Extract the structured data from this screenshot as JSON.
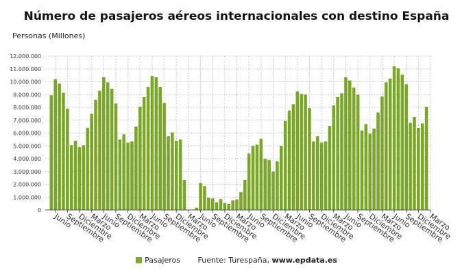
{
  "chart_data": {
    "type": "bar",
    "title": "Número de pasajeros aéreos internacionales con destino España",
    "ylabel": "Personas (Millones)",
    "xlabel": "",
    "ylim": [
      0,
      12000000
    ],
    "yticks": [
      0,
      1000000,
      2000000,
      3000000,
      4000000,
      5000000,
      6000000,
      7000000,
      8000000,
      9000000,
      10000000,
      11000000,
      12000000
    ],
    "ytick_labels": [
      "0",
      "1.000.000",
      "2.000.000",
      "3.000.000",
      "4.000.000",
      "5.000.000",
      "6.000.000",
      "7.000.000",
      "8.000.000",
      "9.000.000",
      "10.000.000",
      "11.000.000",
      "12.000.000"
    ],
    "color": "#7aa62a",
    "series": [
      {
        "name": "Pasajeros",
        "values": [
          8950000,
          10200000,
          9850000,
          9150000,
          7900000,
          5050000,
          5400000,
          4900000,
          5050000,
          6400000,
          7500000,
          8600000,
          9300000,
          10350000,
          9950000,
          9450000,
          8300000,
          5500000,
          5900000,
          5250000,
          5350000,
          6500000,
          8050000,
          8800000,
          9600000,
          10450000,
          10350000,
          9600000,
          8350000,
          5750000,
          6050000,
          5400000,
          5500000,
          2350000,
          10000,
          20000,
          180000,
          2100000,
          1850000,
          950000,
          900000,
          600000,
          850000,
          550000,
          480000,
          750000,
          820000,
          1400000,
          2350000,
          4400000,
          5000000,
          5100000,
          5550000,
          4000000,
          3900000,
          3000000,
          3800000,
          5000000,
          6950000,
          7750000,
          8250000,
          9250000,
          9050000,
          9000000,
          7950000,
          5350000,
          5750000,
          5250000,
          5350000,
          6550000,
          8150000,
          8800000,
          9100000,
          10350000,
          10100000,
          9550000,
          9000000,
          6200000,
          6700000,
          5950000,
          6350000,
          7600000,
          8850000,
          9950000,
          10250000,
          11200000,
          11050000,
          10550000,
          9800000,
          6800000,
          7250000,
          6400000,
          6750000,
          8050000
        ]
      }
    ],
    "x_tick_labels": [
      {
        "index": 1,
        "label": "Junio"
      },
      {
        "index": 4,
        "label": "Septiembre"
      },
      {
        "index": 7,
        "label": "Diciembre"
      },
      {
        "index": 10,
        "label": "Marzo"
      },
      {
        "index": 13,
        "label": "Junio"
      },
      {
        "index": 16,
        "label": "Septiembre"
      },
      {
        "index": 19,
        "label": "Diciembre"
      },
      {
        "index": 22,
        "label": "Marzo"
      },
      {
        "index": 25,
        "label": "Junio"
      },
      {
        "index": 28,
        "label": "Septiembre"
      },
      {
        "index": 31,
        "label": "Diciembre"
      },
      {
        "index": 34,
        "label": "Marzo"
      },
      {
        "index": 37,
        "label": "Junio"
      },
      {
        "index": 40,
        "label": "Septiembre"
      },
      {
        "index": 43,
        "label": "Diciembre"
      },
      {
        "index": 46,
        "label": "Marzo"
      },
      {
        "index": 49,
        "label": "Junio"
      },
      {
        "index": 52,
        "label": "Septiembre"
      },
      {
        "index": 55,
        "label": "Diciembre"
      },
      {
        "index": 58,
        "label": "Marzo"
      },
      {
        "index": 61,
        "label": "Junio"
      },
      {
        "index": 64,
        "label": "Septiembre"
      },
      {
        "index": 67,
        "label": "Diciembre"
      },
      {
        "index": 70,
        "label": "Marzo"
      },
      {
        "index": 73,
        "label": "Junio"
      },
      {
        "index": 76,
        "label": "Septiembre"
      },
      {
        "index": 79,
        "label": "Diciembre"
      },
      {
        "index": 82,
        "label": "Marzo"
      },
      {
        "index": 85,
        "label": "Junio"
      },
      {
        "index": 88,
        "label": "Septiembre"
      },
      {
        "index": 91,
        "label": "Diciembre"
      },
      {
        "index": 94,
        "label": "Marzo"
      }
    ],
    "grid": true,
    "legend_position": "bottom-center"
  },
  "legend": {
    "series_label": "Pasajeros",
    "source_prefix": "Fuente: Turespaña, ",
    "source_site": "www.epdata.es"
  }
}
